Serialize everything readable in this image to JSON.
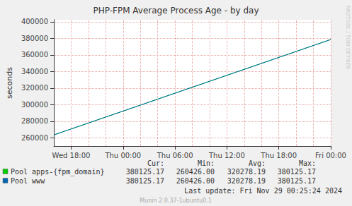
{
  "chart_data": {
    "type": "line",
    "title": "PHP-FPM Average Process Age - by day",
    "y_label": "seconds",
    "categories": [
      null,
      null,
      "Wed 18:00",
      null,
      null,
      null,
      null,
      null,
      "Thu 00:00",
      null,
      null,
      null,
      null,
      null,
      "Thu 06:00",
      null,
      null,
      null,
      null,
      null,
      "Thu 12:00",
      null,
      null,
      null,
      null,
      null,
      "Thu 18:00",
      null,
      null,
      null,
      null,
      null,
      "Fri 00:00"
    ],
    "series": [
      {
        "name": "Pool apps-{fpm_domain}",
        "color": "#00cc00",
        "values": [
          263425,
          267025,
          270625,
          274225,
          277825,
          281425,
          285025,
          288625,
          292225,
          295825,
          299425,
          303025,
          306625,
          310225,
          313825,
          317425,
          321025,
          324625,
          328225,
          331825,
          335425,
          339025,
          342625,
          346225,
          349825,
          353425,
          357025,
          360625,
          364225,
          367825,
          371425,
          375025,
          378625
        ]
      },
      {
        "name": "Pool www",
        "color": "#0066b3",
        "values": [
          263425,
          267025,
          270625,
          274225,
          277825,
          281425,
          285025,
          288625,
          292225,
          295825,
          299425,
          303025,
          306625,
          310225,
          313825,
          317425,
          321025,
          324625,
          328225,
          331825,
          335425,
          339025,
          342625,
          346225,
          349825,
          353425,
          357025,
          360625,
          364225,
          367825,
          371425,
          375025,
          378625
        ]
      }
    ],
    "ylim": [
      250000,
      402500
    ],
    "yticks": [
      260000,
      280000,
      300000,
      320000,
      340000,
      360000,
      380000,
      400000
    ],
    "grid": true,
    "legend_table": {
      "columns": [
        "Cur:",
        "Min:",
        "Avg:",
        "Max:"
      ],
      "rows": [
        [
          "380125.17",
          "260426.00",
          "320278.19",
          "380125.17"
        ],
        [
          "380125.17",
          "260426.00",
          "320278.19",
          "380125.17"
        ]
      ]
    },
    "last_update": "Last update: Fri Nov 29 00:25:24 2024",
    "footer": "Munin 2.0.37-1ubuntu0.1",
    "watermark": "RRDTOOL / TOBI OETIKER"
  }
}
